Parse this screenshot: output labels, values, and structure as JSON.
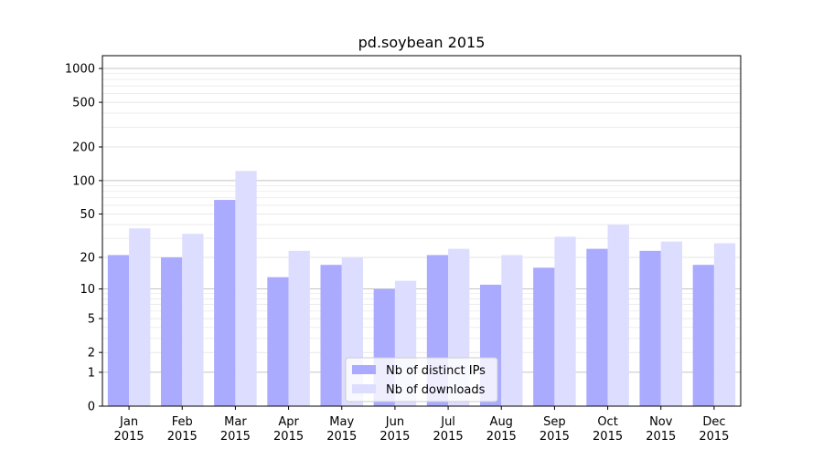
{
  "chart_data": {
    "type": "bar",
    "title": "pd.soybean 2015",
    "xlabel": "",
    "ylabel": "",
    "categories": [
      [
        "Jan",
        "2015"
      ],
      [
        "Feb",
        "2015"
      ],
      [
        "Mar",
        "2015"
      ],
      [
        "Apr",
        "2015"
      ],
      [
        "May",
        "2015"
      ],
      [
        "Jun",
        "2015"
      ],
      [
        "Jul",
        "2015"
      ],
      [
        "Aug",
        "2015"
      ],
      [
        "Sep",
        "2015"
      ],
      [
        "Oct",
        "2015"
      ],
      [
        "Nov",
        "2015"
      ],
      [
        "Dec",
        "2015"
      ]
    ],
    "series": [
      {
        "name": "Nb of distinct IPs",
        "color": "#aaaaff",
        "values": [
          21,
          20,
          67,
          13,
          17,
          10,
          21,
          11,
          16,
          24,
          23,
          17
        ]
      },
      {
        "name": "Nb of downloads",
        "color": "#ddddff",
        "values": [
          37,
          33,
          122,
          23,
          20,
          12,
          24,
          21,
          31,
          40,
          28,
          27
        ]
      }
    ],
    "yscale": "log1p",
    "ylim": [
      0,
      1300
    ],
    "yticks": [
      0,
      1,
      2,
      5,
      10,
      20,
      50,
      100,
      200,
      500,
      1000
    ],
    "grid": true,
    "legend_position": "lower center"
  }
}
